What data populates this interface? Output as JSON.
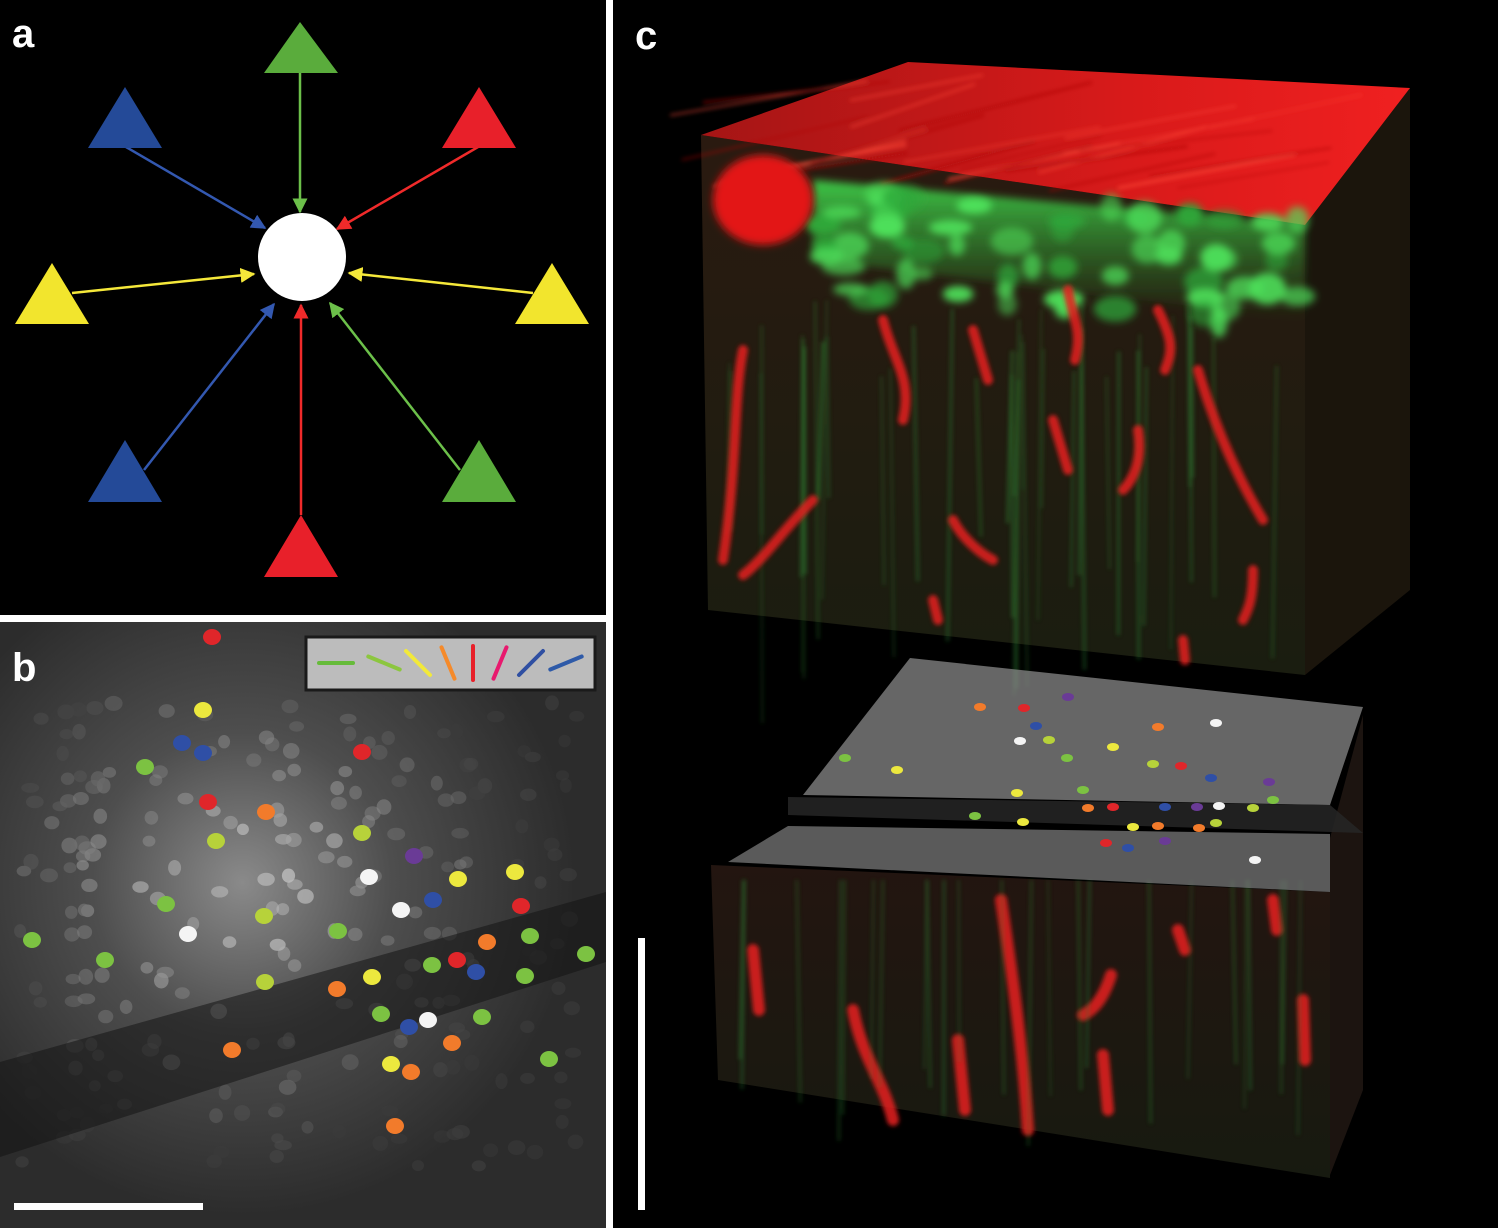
{
  "panels": {
    "a": {
      "label": "a"
    },
    "b": {
      "label": "b",
      "legend_colors": [
        "#66bb3a",
        "#8cc63f",
        "#f2e93a",
        "#f58a2a",
        "#e8202a",
        "#e8196e",
        "#2f4fa2",
        "#2e5aa8"
      ]
    },
    "c": {
      "label": "c"
    }
  },
  "colors": {
    "green": "#5aac3c",
    "blue": "#244a98",
    "red": "#e8202a",
    "yellow": "#f2e52d",
    "target": "#ffffff",
    "background": "#000000"
  }
}
